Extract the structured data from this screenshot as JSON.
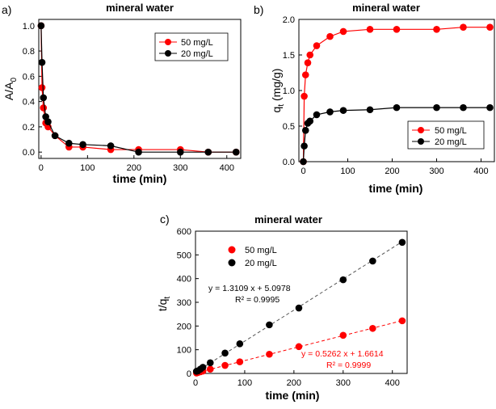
{
  "chart_data": [
    {
      "panel_label": "a)",
      "type": "line",
      "title": "mineral water",
      "xlabel": "time (min)",
      "ylabel": "A/A",
      "ylabel_sub": "0",
      "xlim": [
        -5,
        430
      ],
      "ylim": [
        -0.05,
        1.05
      ],
      "xticks": [
        0,
        100,
        200,
        300,
        400
      ],
      "yticks": [
        0.0,
        0.2,
        0.4,
        0.6,
        0.8,
        1.0
      ],
      "ytick_labels": [
        "0.0",
        "0.2",
        "0.4",
        "0.6",
        "0.8",
        "1.0"
      ],
      "legend_position": "top-right",
      "series": [
        {
          "name": "50 mg/L",
          "color": "#ff0000",
          "x": [
            0,
            2,
            5,
            10,
            15,
            30,
            60,
            90,
            150,
            210,
            300,
            360,
            420
          ],
          "y": [
            1.0,
            0.51,
            0.35,
            0.23,
            0.2,
            0.13,
            0.04,
            0.04,
            0.02,
            0.02,
            0.02,
            0.0,
            0.0
          ]
        },
        {
          "name": "20 mg/L",
          "color": "#000000",
          "x": [
            0,
            2,
            5,
            10,
            15,
            30,
            60,
            90,
            150,
            210,
            300,
            360,
            420
          ],
          "y": [
            1.0,
            0.71,
            0.43,
            0.28,
            0.24,
            0.13,
            0.07,
            0.06,
            0.05,
            0.0,
            0.0,
            0.0,
            0.0
          ]
        }
      ]
    },
    {
      "panel_label": "b)",
      "type": "line",
      "title": "mineral water",
      "xlabel": "time (min)",
      "ylabel": "q",
      "ylabel_sub": "t",
      "ylabel_unit": " (mg/g)",
      "xlim": [
        -10,
        430
      ],
      "ylim": [
        0,
        2.0
      ],
      "xticks": [
        0,
        100,
        200,
        300,
        400
      ],
      "yticks": [
        0.0,
        0.5,
        1.0,
        1.5,
        2.0
      ],
      "ytick_labels": [
        "0.0",
        "0.5",
        "1.0",
        "1.5",
        "2.0"
      ],
      "legend_position": "bottom-right",
      "series": [
        {
          "name": "50 mg/L",
          "color": "#ff0000",
          "x": [
            0,
            2,
            5,
            10,
            15,
            30,
            60,
            90,
            150,
            210,
            300,
            360,
            420
          ],
          "y": [
            0.0,
            0.92,
            1.22,
            1.39,
            1.5,
            1.63,
            1.76,
            1.83,
            1.86,
            1.86,
            1.86,
            1.89,
            1.89
          ]
        },
        {
          "name": "20 mg/L",
          "color": "#000000",
          "x": [
            0,
            2,
            5,
            10,
            15,
            30,
            60,
            90,
            150,
            210,
            300,
            360,
            420
          ],
          "y": [
            0.0,
            0.22,
            0.44,
            0.54,
            0.57,
            0.66,
            0.7,
            0.72,
            0.73,
            0.76,
            0.76,
            0.76,
            0.76
          ]
        }
      ]
    },
    {
      "panel_label": "c)",
      "type": "scatter",
      "title": "mineral water",
      "xlabel": "time (min)",
      "ylabel": "t/q",
      "ylabel_sub": "t",
      "xlim": [
        0,
        430
      ],
      "ylim": [
        0,
        600
      ],
      "xticks": [
        0,
        100,
        200,
        300,
        400
      ],
      "yticks": [
        0,
        100,
        200,
        300,
        400,
        500,
        600
      ],
      "ytick_labels": [
        "0",
        "100",
        "200",
        "300",
        "400",
        "500",
        "600"
      ],
      "legend_position": "top-left",
      "series": [
        {
          "name": "50 mg/L",
          "color": "#ff0000",
          "x": [
            2,
            5,
            10,
            15,
            30,
            60,
            90,
            150,
            210,
            300,
            360,
            420
          ],
          "y": [
            2,
            4,
            7,
            10,
            18,
            34,
            49,
            81,
            113,
            161,
            190,
            222
          ],
          "fit": {
            "slope": 0.5262,
            "intercept": 1.6614
          },
          "equation": "y = 0.5262 x + 1.6614",
          "r2": "R² = 0.9999"
        },
        {
          "name": "20 mg/L",
          "color": "#000000",
          "x": [
            2,
            5,
            10,
            15,
            30,
            60,
            90,
            150,
            210,
            300,
            360,
            420
          ],
          "y": [
            9,
            11,
            18,
            26,
            45,
            86,
            125,
            205,
            276,
            395,
            474,
            553
          ],
          "fit": {
            "slope": 1.3109,
            "intercept": 5.0978
          },
          "equation": "y = 1.3109 x + 5.0978",
          "r2": "R² = 0.9995"
        }
      ]
    }
  ]
}
